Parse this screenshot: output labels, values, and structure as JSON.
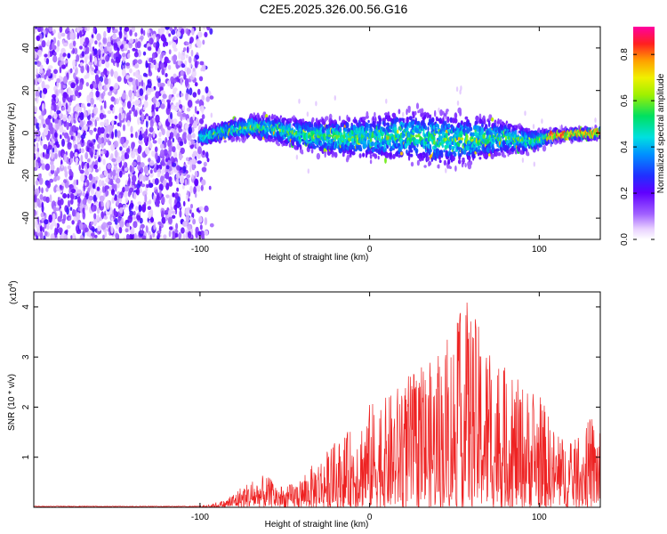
{
  "title": "C2E5.2025.326.00.56.G16",
  "chart_data": [
    {
      "type": "heatmap",
      "xlabel": "Height of straight line (km)",
      "ylabel": "Frequency (Hz)",
      "xlim": [
        -198,
        136
      ],
      "ylim": [
        -50,
        50
      ],
      "xticks": [
        -100,
        0,
        100
      ],
      "yticks": [
        -40,
        -20,
        0,
        20,
        40
      ],
      "colorbar": {
        "label": "Normalized spectral amplitude",
        "range": [
          0,
          0.92
        ],
        "ticks": [
          0.0,
          0.2,
          0.4,
          0.6,
          0.8
        ]
      },
      "noise_region_x": [
        -198,
        -98
      ],
      "signal_center_hz": [
        {
          "x": -100,
          "y": -2
        },
        {
          "x": -85,
          "y": 1
        },
        {
          "x": -70,
          "y": 3
        },
        {
          "x": -55,
          "y": 2
        },
        {
          "x": -40,
          "y": -1
        },
        {
          "x": -20,
          "y": -2
        },
        {
          "x": 0,
          "y": -2
        },
        {
          "x": 20,
          "y": -1
        },
        {
          "x": 40,
          "y": -3
        },
        {
          "x": 60,
          "y": -3
        },
        {
          "x": 80,
          "y": -2
        },
        {
          "x": 95,
          "y": -4
        },
        {
          "x": 110,
          "y": -1
        },
        {
          "x": 136,
          "y": 0
        }
      ],
      "signal_halfwidth_hz": [
        {
          "x": -100,
          "y": 4
        },
        {
          "x": -60,
          "y": 6
        },
        {
          "x": -20,
          "y": 9
        },
        {
          "x": 20,
          "y": 12
        },
        {
          "x": 50,
          "y": 13
        },
        {
          "x": 80,
          "y": 8
        },
        {
          "x": 110,
          "y": 3
        },
        {
          "x": 136,
          "y": 3
        }
      ]
    },
    {
      "type": "line",
      "xlabel": "Height of straight line (km)",
      "ylabel": "SNR (10 * v/v)",
      "multiplier": "(x10",
      "multiplier_exp": "4",
      "multiplier_close": ")",
      "xlim": [
        -198,
        136
      ],
      "ylim": [
        0,
        4.3
      ],
      "xticks": [
        -100,
        0,
        100
      ],
      "yticks": [
        1,
        2,
        3,
        4
      ],
      "color": "#ee2222",
      "envelope": [
        {
          "x": -198,
          "y": 0.0
        },
        {
          "x": -110,
          "y": 0.02
        },
        {
          "x": -95,
          "y": 0.05
        },
        {
          "x": -85,
          "y": 0.15
        },
        {
          "x": -75,
          "y": 0.45
        },
        {
          "x": -62,
          "y": 0.65
        },
        {
          "x": -50,
          "y": 0.4
        },
        {
          "x": -40,
          "y": 0.6
        },
        {
          "x": -30,
          "y": 1.0
        },
        {
          "x": -20,
          "y": 1.3
        },
        {
          "x": -10,
          "y": 1.6
        },
        {
          "x": 0,
          "y": 2.1
        },
        {
          "x": 10,
          "y": 2.2
        },
        {
          "x": 20,
          "y": 2.6
        },
        {
          "x": 30,
          "y": 2.8
        },
        {
          "x": 40,
          "y": 3.0
        },
        {
          "x": 48,
          "y": 3.5
        },
        {
          "x": 57,
          "y": 4.2
        },
        {
          "x": 65,
          "y": 3.6
        },
        {
          "x": 75,
          "y": 3.0
        },
        {
          "x": 85,
          "y": 2.6
        },
        {
          "x": 100,
          "y": 2.3
        },
        {
          "x": 110,
          "y": 1.5
        },
        {
          "x": 120,
          "y": 1.3
        },
        {
          "x": 130,
          "y": 1.8
        },
        {
          "x": 136,
          "y": 1.7
        }
      ]
    }
  ]
}
